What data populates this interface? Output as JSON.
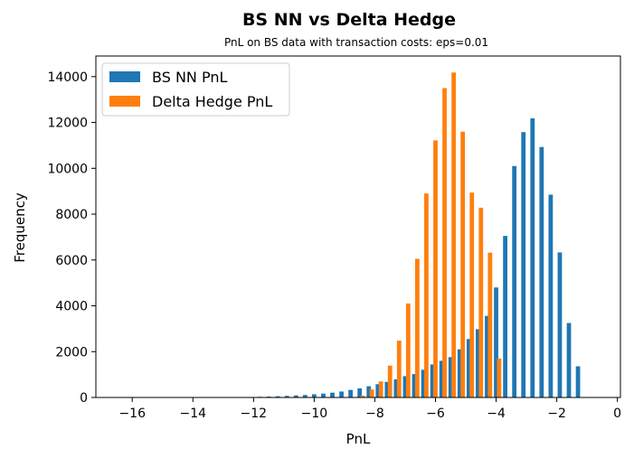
{
  "chart_data": {
    "type": "bar",
    "title": "BS NN vs Delta Hedge",
    "subtitle": "PnL on BS data with transaction costs: eps=0.01",
    "xlabel": "PnL",
    "ylabel": "Frequency",
    "xlim": [
      -17.2,
      0.1
    ],
    "ylim": [
      0,
      14900
    ],
    "xticks": [
      -16,
      -14,
      -12,
      -10,
      -8,
      -6,
      -4,
      -2,
      0
    ],
    "xtick_labels": [
      "−16",
      "−14",
      "−12",
      "−10",
      "−8",
      "−6",
      "−4",
      "−2",
      "0"
    ],
    "yticks": [
      0,
      2000,
      4000,
      6000,
      8000,
      10000,
      12000,
      14000
    ],
    "ytick_labels": [
      "0",
      "2000",
      "4000",
      "6000",
      "8000",
      "10000",
      "12000",
      "14000"
    ],
    "grid": false,
    "legend_position": "top-left",
    "series": [
      {
        "name": "BS NN PnL",
        "color": "#1f77b4",
        "points": [
          {
            "x": -16.6,
            "y": 5
          },
          {
            "x": -16.3,
            "y": 5
          },
          {
            "x": -16.0,
            "y": 5
          },
          {
            "x": -15.7,
            "y": 5
          },
          {
            "x": -15.4,
            "y": 5
          },
          {
            "x": -15.1,
            "y": 5
          },
          {
            "x": -14.8,
            "y": 5
          },
          {
            "x": -14.5,
            "y": 5
          },
          {
            "x": -14.2,
            "y": 5
          },
          {
            "x": -13.9,
            "y": 5
          },
          {
            "x": -13.6,
            "y": 5
          },
          {
            "x": -13.3,
            "y": 5
          },
          {
            "x": -13.0,
            "y": 8
          },
          {
            "x": -12.7,
            "y": 10
          },
          {
            "x": -12.4,
            "y": 15
          },
          {
            "x": -12.1,
            "y": 20
          },
          {
            "x": -11.8,
            "y": 30
          },
          {
            "x": -11.5,
            "y": 40
          },
          {
            "x": -11.2,
            "y": 55
          },
          {
            "x": -10.9,
            "y": 70
          },
          {
            "x": -10.6,
            "y": 90
          },
          {
            "x": -10.3,
            "y": 110
          },
          {
            "x": -10.0,
            "y": 140
          },
          {
            "x": -9.7,
            "y": 170
          },
          {
            "x": -9.4,
            "y": 210
          },
          {
            "x": -9.1,
            "y": 260
          },
          {
            "x": -8.8,
            "y": 330
          },
          {
            "x": -8.5,
            "y": 400
          },
          {
            "x": -8.2,
            "y": 490
          },
          {
            "x": -7.9,
            "y": 580
          },
          {
            "x": -7.6,
            "y": 680
          },
          {
            "x": -7.3,
            "y": 790
          },
          {
            "x": -7.0,
            "y": 930
          },
          {
            "x": -6.7,
            "y": 1020
          },
          {
            "x": -6.4,
            "y": 1210
          },
          {
            "x": -6.1,
            "y": 1440
          },
          {
            "x": -5.8,
            "y": 1600
          },
          {
            "x": -5.5,
            "y": 1760
          },
          {
            "x": -5.2,
            "y": 2100
          },
          {
            "x": -4.9,
            "y": 2550
          },
          {
            "x": -4.6,
            "y": 2980
          },
          {
            "x": -4.3,
            "y": 3560
          },
          {
            "x": -4.0,
            "y": 4800
          },
          {
            "x": -3.7,
            "y": 7050
          },
          {
            "x": -3.4,
            "y": 10100
          },
          {
            "x": -3.1,
            "y": 11580
          },
          {
            "x": -2.8,
            "y": 12180
          },
          {
            "x": -2.5,
            "y": 10930
          },
          {
            "x": -2.2,
            "y": 8850
          },
          {
            "x": -1.9,
            "y": 6330
          },
          {
            "x": -1.6,
            "y": 3250
          },
          {
            "x": -1.3,
            "y": 1360
          }
        ]
      },
      {
        "name": "Delta Hedge PnL",
        "color": "#ff7f0e",
        "points": [
          {
            "x": -8.4,
            "y": 80
          },
          {
            "x": -8.1,
            "y": 350
          },
          {
            "x": -7.8,
            "y": 700
          },
          {
            "x": -7.5,
            "y": 1390
          },
          {
            "x": -7.2,
            "y": 2480
          },
          {
            "x": -6.9,
            "y": 4100
          },
          {
            "x": -6.6,
            "y": 6050
          },
          {
            "x": -6.3,
            "y": 8900
          },
          {
            "x": -6.0,
            "y": 11220
          },
          {
            "x": -5.7,
            "y": 13500
          },
          {
            "x": -5.4,
            "y": 14180
          },
          {
            "x": -5.1,
            "y": 11600
          },
          {
            "x": -4.8,
            "y": 8940
          },
          {
            "x": -4.5,
            "y": 8280
          },
          {
            "x": -4.2,
            "y": 6320
          },
          {
            "x": -3.9,
            "y": 1700
          }
        ]
      }
    ]
  }
}
